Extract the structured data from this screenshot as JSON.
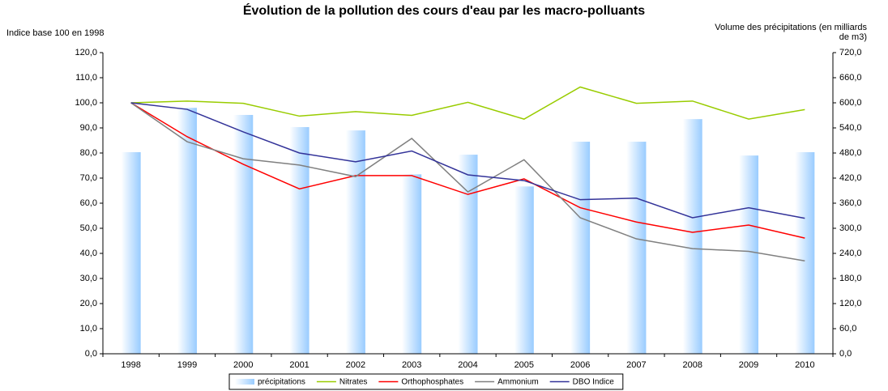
{
  "chart_data": {
    "type": "bar",
    "title": "Évolution de la pollution des cours d'eau par les macro-polluants",
    "y_label": "Indice base 100 en 1998",
    "y2_label": "Volume des précipitations (en milliards de m3)",
    "categories": [
      "1998",
      "1999",
      "2000",
      "2001",
      "2002",
      "2003",
      "2004",
      "2005",
      "2006",
      "2007",
      "2008",
      "2009",
      "2010"
    ],
    "ylim": [
      0,
      120
    ],
    "yticks": [
      {
        "value": 0,
        "label": "0,0"
      },
      {
        "value": 10,
        "label": "10,0"
      },
      {
        "value": 20,
        "label": "20,0"
      },
      {
        "value": 30,
        "label": "30,0"
      },
      {
        "value": 40,
        "label": "40,0"
      },
      {
        "value": 50,
        "label": "50,0"
      },
      {
        "value": 60,
        "label": "60,0"
      },
      {
        "value": 70,
        "label": "70,0"
      },
      {
        "value": 80,
        "label": "80,0"
      },
      {
        "value": 90,
        "label": "90,0"
      },
      {
        "value": 100,
        "label": "100,0"
      },
      {
        "value": 110,
        "label": "110,0"
      },
      {
        "value": 120,
        "label": "120,0"
      }
    ],
    "y2lim": [
      0,
      720
    ],
    "y2ticks": [
      {
        "value": 0,
        "label": "0,0"
      },
      {
        "value": 60,
        "label": "60,0"
      },
      {
        "value": 120,
        "label": "120,0"
      },
      {
        "value": 180,
        "label": "180,0"
      },
      {
        "value": 240,
        "label": "240,0"
      },
      {
        "value": 300,
        "label": "300,0"
      },
      {
        "value": 360,
        "label": "360,0"
      },
      {
        "value": 420,
        "label": "420,0"
      },
      {
        "value": 480,
        "label": "480,0"
      },
      {
        "value": 540,
        "label": "540,0"
      },
      {
        "value": 600,
        "label": "600,0"
      },
      {
        "value": 660,
        "label": "660,0"
      },
      {
        "value": 720,
        "label": "720,0"
      }
    ],
    "y2_color": "#3366cc",
    "grid": false,
    "legend": "bottom",
    "series": [
      {
        "name": "précipitations",
        "kind": "bar",
        "axis": "y2",
        "color": "#99ccff",
        "values": [
          482,
          588,
          571,
          542,
          534,
          429,
          476,
          400,
          507,
          507,
          561,
          474,
          482
        ]
      },
      {
        "name": "Nitrates",
        "kind": "line",
        "color": "#99cc00",
        "values": [
          100,
          100.7,
          99.8,
          94.7,
          96.5,
          95,
          100.2,
          93.5,
          106.3,
          99.8,
          100.7,
          93.5,
          97.3
        ]
      },
      {
        "name": "Orthophosphates",
        "kind": "line",
        "color": "#ff0000",
        "values": [
          100,
          86.5,
          75.5,
          65.7,
          71,
          71,
          63.5,
          69.7,
          58.2,
          52.5,
          48.4,
          51.3,
          46.1
        ]
      },
      {
        "name": "Ammonium",
        "kind": "line",
        "color": "#808080",
        "values": [
          100,
          84.5,
          77.7,
          75.2,
          70.6,
          85.8,
          64.5,
          77.3,
          54.2,
          45.8,
          41.9,
          40.8,
          37
        ]
      },
      {
        "name": "DBO Indice",
        "kind": "line",
        "color": "#333399",
        "values": [
          100,
          97.4,
          88.4,
          80,
          76.5,
          80.8,
          71.3,
          69,
          61.4,
          62,
          54.2,
          58.2,
          54
        ]
      }
    ]
  }
}
